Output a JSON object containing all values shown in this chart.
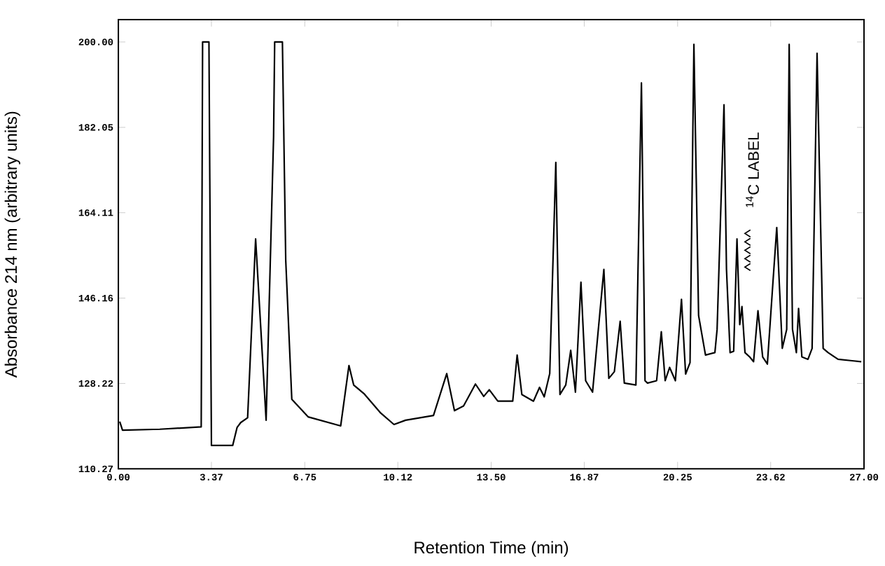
{
  "chart_data": {
    "type": "line",
    "xlabel": "Retention Time (min)",
    "ylabel": "Absorbance  214 nm (arbitrary units)",
    "annotations": [
      {
        "text": "$^{14}$C LABEL",
        "x": 22.4,
        "y": 158.6
      }
    ],
    "color": "#000000",
    "marker": "none",
    "xlim": [
      0,
      27
    ],
    "ylim": [
      110.27,
      204.7
    ],
    "xticks": [
      {
        "value": 0,
        "label": "0.00"
      },
      {
        "value": 3.37,
        "label": "3.37"
      },
      {
        "value": 6.75,
        "label": "6.75"
      },
      {
        "value": 10.12,
        "label": "10.12"
      },
      {
        "value": 13.5,
        "label": "13.50"
      },
      {
        "value": 16.87,
        "label": "16.87"
      },
      {
        "value": 20.25,
        "label": "20.25"
      },
      {
        "value": 23.62,
        "label": "23.62"
      },
      {
        "value": 27,
        "label": "27.00"
      }
    ],
    "yticks": [
      {
        "value": 110.27,
        "label": "110.27"
      },
      {
        "value": 128.22,
        "label": "128.22"
      },
      {
        "value": 146.16,
        "label": "146.16"
      },
      {
        "value": 164.11,
        "label": "164.11"
      },
      {
        "value": 182.05,
        "label": "182.05"
      },
      {
        "value": 200,
        "label": "200.00"
      }
    ],
    "x": [
      0.05,
      0.15,
      1.5,
      3.0,
      3.05,
      3.28,
      3.37,
      4.14,
      4.3,
      4.43,
      4.68,
      4.97,
      5.35,
      5.62,
      5.66,
      5.94,
      6.06,
      6.28,
      6.87,
      8.05,
      8.35,
      8.52,
      8.89,
      9.5,
      9.98,
      10.4,
      11.41,
      11.89,
      12.17,
      12.5,
      12.93,
      13.23,
      13.43,
      13.74,
      14.28,
      14.44,
      14.61,
      15.03,
      15.25,
      15.42,
      15.62,
      15.84,
      15.99,
      16.2,
      16.38,
      16.55,
      16.75,
      16.92,
      17.17,
      17.58,
      17.76,
      17.96,
      18.17,
      18.32,
      18.74,
      18.94,
      19.07,
      19.16,
      19.49,
      19.66,
      19.8,
      19.96,
      20.17,
      20.39,
      20.54,
      20.7,
      20.84,
      21.01,
      21.26,
      21.6,
      21.68,
      21.93,
      22.02,
      22.15,
      22.28,
      22.4,
      22.5,
      22.58,
      22.69,
      22.86,
      23.0,
      23.16,
      23.33,
      23.5,
      23.7,
      23.84,
      24.04,
      24.2,
      24.29,
      24.41,
      24.55,
      24.63,
      24.75,
      24.97,
      25.12,
      25.3,
      25.52,
      25.7,
      26.06,
      26.57,
      26.9
    ],
    "values": [
      120.2,
      118.4,
      118.6,
      119.1,
      200,
      200,
      115.2,
      115.2,
      119,
      120,
      121,
      158.6,
      120.5,
      180,
      200,
      200,
      154.2,
      124.9,
      121.2,
      119.3,
      132,
      127.9,
      126.1,
      122,
      119.6,
      120.5,
      121.5,
      130.3,
      122.5,
      123.5,
      128.1,
      125.5,
      126.9,
      124.5,
      124.5,
      134.2,
      125.9,
      124.5,
      127.4,
      125.4,
      130.3,
      174.7,
      125.9,
      127.9,
      135.2,
      126.4,
      149.5,
      128.8,
      126.4,
      152.2,
      129.3,
      130.7,
      141.3,
      128.3,
      127.9,
      191.4,
      128.8,
      128.3,
      128.8,
      139.1,
      128.8,
      131.6,
      128.8,
      145.9,
      130.2,
      132.6,
      199.5,
      142.5,
      134.2,
      134.7,
      139.6,
      186.8,
      152.2,
      134.7,
      135,
      158.6,
      140.6,
      144.4,
      134.7,
      133.8,
      132.8,
      143.5,
      133.8,
      132.3,
      149.3,
      161,
      135.6,
      139.6,
      199.5,
      139.6,
      134.7,
      144,
      133.8,
      133.3,
      135.6,
      197.6,
      135.6,
      134.7,
      133.3,
      133,
      132.8
    ]
  }
}
